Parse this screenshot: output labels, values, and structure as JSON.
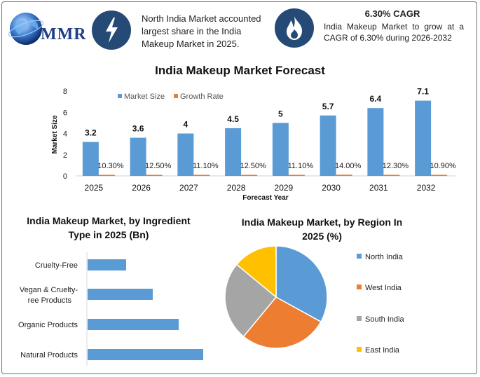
{
  "brand": {
    "logo_text": "MMR"
  },
  "highlights": [
    {
      "icon": "lightning-icon",
      "text": "North India Market accounted largest share in the India Makeup Market in 2025."
    },
    {
      "icon": "flame-icon",
      "title": "6.30% CAGR",
      "text": "India Makeup Market to grow at a CAGR of 6.30% during 2026-2032"
    }
  ],
  "colors": {
    "blue": "#5b9bd5",
    "orange": "#ed7d31",
    "gray": "#a5a5a5",
    "yellow": "#ffc000",
    "navy": "#244a75"
  },
  "chart_data": [
    {
      "type": "bar",
      "title": "India Makeup Market Forecast",
      "xlabel": "Forecast Year",
      "ylabel": "Market Size",
      "categories": [
        "2025",
        "2026",
        "2027",
        "2028",
        "2029",
        "2030",
        "2031",
        "2032"
      ],
      "series": [
        {
          "name": "Market Size",
          "values": [
            3.2,
            3.6,
            4,
            4.5,
            5,
            5.7,
            6.4,
            7.1
          ],
          "labels": [
            "3.2",
            "3.6",
            "4",
            "4.5",
            "5",
            "5.7",
            "6.4",
            "7.1"
          ]
        },
        {
          "name": "Growth Rate",
          "values": [
            0.103,
            0.125,
            0.111,
            0.125,
            0.111,
            0.14,
            0.123,
            0.109
          ],
          "labels": [
            "10.30%",
            "12.50%",
            "11.10%",
            "12.50%",
            "11.10%",
            "14.00%",
            "12.30%",
            "10.90%"
          ]
        }
      ],
      "ylim": [
        0,
        8
      ],
      "yticks": [
        0,
        2,
        4,
        6,
        8
      ],
      "legend_position": "top"
    },
    {
      "type": "bar",
      "orientation": "horizontal",
      "title": "India Makeup Market, by Ingredient Type in 2025 (Bn)",
      "categories": [
        "Cruelty-Free",
        "Vegan & Cruelty-Free Products",
        "Organic Products",
        "Natural Products"
      ],
      "values": [
        0.55,
        0.93,
        1.3,
        1.65
      ]
    },
    {
      "type": "pie",
      "title": "India Makeup Market, by Region In 2025 (%)",
      "labels": [
        "North India",
        "West India",
        "South India",
        "East India"
      ],
      "values": [
        33,
        28,
        25,
        14
      ],
      "legend_position": "right"
    }
  ]
}
